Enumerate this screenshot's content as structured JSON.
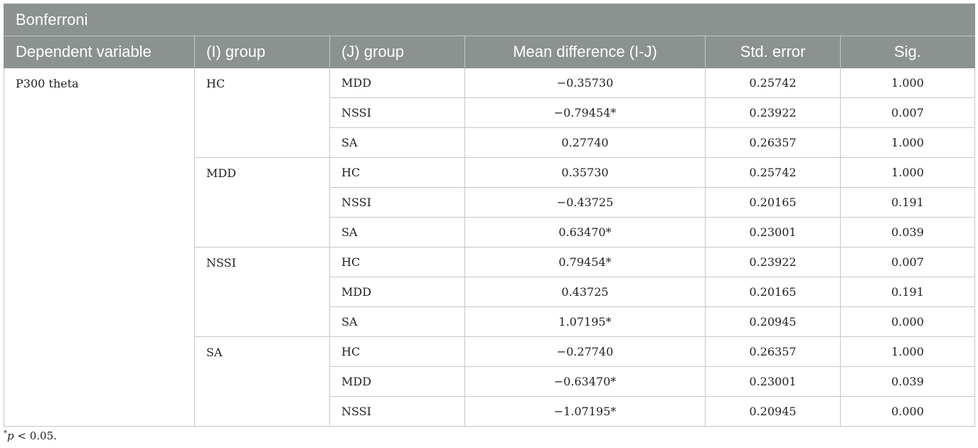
{
  "table": {
    "title": "Bonferroni",
    "headers": {
      "dependent_variable": "Dependent variable",
      "i_group": "(I) group",
      "j_group": "(J) group",
      "mean_difference": "Mean difference (I-J)",
      "std_error": "Std. error",
      "sig": "Sig."
    },
    "dependent_variable_value": "P300 theta",
    "groups": [
      {
        "i_group": "HC",
        "rows": [
          {
            "j_group": "MDD",
            "mean_difference": "−0.35730",
            "std_error": "0.25742",
            "sig": "1.000"
          },
          {
            "j_group": "NSSI",
            "mean_difference": "−0.79454*",
            "std_error": "0.23922",
            "sig": "0.007"
          },
          {
            "j_group": "SA",
            "mean_difference": "0.27740",
            "std_error": "0.26357",
            "sig": "1.000"
          }
        ]
      },
      {
        "i_group": "MDD",
        "rows": [
          {
            "j_group": "HC",
            "mean_difference": "0.35730",
            "std_error": "0.25742",
            "sig": "1.000"
          },
          {
            "j_group": "NSSI",
            "mean_difference": "−0.43725",
            "std_error": "0.20165",
            "sig": "0.191"
          },
          {
            "j_group": "SA",
            "mean_difference": "0.63470*",
            "std_error": "0.23001",
            "sig": "0.039"
          }
        ]
      },
      {
        "i_group": "NSSI",
        "rows": [
          {
            "j_group": "HC",
            "mean_difference": "0.79454*",
            "std_error": "0.23922",
            "sig": "0.007"
          },
          {
            "j_group": "MDD",
            "mean_difference": "0.43725",
            "std_error": "0.20165",
            "sig": "0.191"
          },
          {
            "j_group": "SA",
            "mean_difference": "1.07195*",
            "std_error": "0.20945",
            "sig": "0.000"
          }
        ]
      },
      {
        "i_group": "SA",
        "rows": [
          {
            "j_group": "HC",
            "mean_difference": "−0.27740",
            "std_error": "0.26357",
            "sig": "1.000"
          },
          {
            "j_group": "MDD",
            "mean_difference": "−0.63470*",
            "std_error": "0.23001",
            "sig": "0.039"
          },
          {
            "j_group": "NSSI",
            "mean_difference": "−1.07195*",
            "std_error": "0.20945",
            "sig": "0.000"
          }
        ]
      }
    ]
  },
  "footnote": {
    "marker": "*",
    "variable": "p",
    "condition": " < 0.05."
  },
  "colors": {
    "header_background": "#8b9290",
    "header_text": "#ffffff",
    "grid_line": "#c7c7c7"
  }
}
